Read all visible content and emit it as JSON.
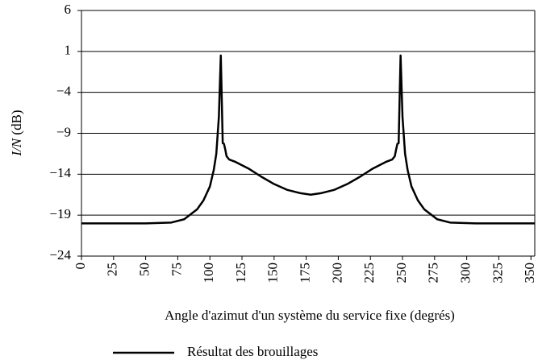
{
  "chart_data": {
    "type": "line",
    "x_label": "Angle d'azimut d'un système du service fixe (degrés)",
    "y_label": {
      "variable": "I/N",
      "unit": "(dB)"
    },
    "x": [
      0,
      50,
      70,
      80,
      90,
      95,
      100,
      103,
      105,
      107,
      108,
      108.5,
      109,
      110,
      111,
      112,
      113,
      115,
      120,
      130,
      140,
      150,
      160,
      170,
      178.5,
      187,
      197,
      207,
      217,
      227,
      237,
      242,
      244,
      245,
      246,
      247,
      248,
      248.5,
      249,
      250,
      252,
      254,
      257,
      262,
      267,
      277,
      287,
      307,
      353
    ],
    "series": [
      {
        "name": "Résultat des brouillages",
        "color": "#000000",
        "values": [
          -20,
          -20,
          -19.9,
          -19.5,
          -18.3,
          -17.2,
          -15.5,
          -13.5,
          -11.5,
          -7,
          -2,
          0.5,
          -3,
          -10.2,
          -10.3,
          -11,
          -11.8,
          -12.2,
          -12.5,
          -13.3,
          -14.3,
          -15.2,
          -15.9,
          -16.3,
          -16.5,
          -16.3,
          -15.9,
          -15.2,
          -14.3,
          -13.3,
          -12.5,
          -12.2,
          -11.8,
          -11,
          -10.3,
          -10.2,
          -3,
          0.5,
          -2,
          -7,
          -11.5,
          -13.5,
          -15.5,
          -17.2,
          -18.3,
          -19.5,
          -19.9,
          -20,
          -20
        ]
      }
    ],
    "xlim": [
      0,
      353
    ],
    "xticks": [
      0,
      25,
      50,
      75,
      100,
      125,
      150,
      175,
      200,
      225,
      250,
      275,
      300,
      325,
      350
    ],
    "ylim": [
      -24,
      6
    ],
    "yticks": [
      {
        "value": -24,
        "label": "−24"
      },
      {
        "value": -19,
        "label": "−19"
      },
      {
        "value": -14,
        "label": "−14"
      },
      {
        "value": -9,
        "label": "−9"
      },
      {
        "value": -4,
        "label": "−4"
      },
      1,
      6
    ],
    "grid": true,
    "legend": "bottom"
  }
}
